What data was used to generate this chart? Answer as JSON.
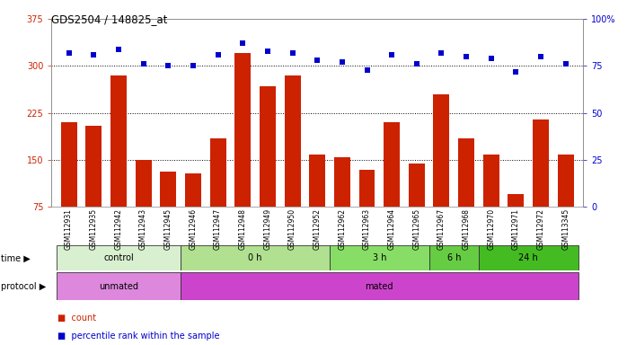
{
  "title": "GDS2504 / 148825_at",
  "samples": [
    "GSM112931",
    "GSM112935",
    "GSM112942",
    "GSM112943",
    "GSM112945",
    "GSM112946",
    "GSM112947",
    "GSM112948",
    "GSM112949",
    "GSM112950",
    "GSM112952",
    "GSM112962",
    "GSM112963",
    "GSM112964",
    "GSM112965",
    "GSM112967",
    "GSM112968",
    "GSM112970",
    "GSM112971",
    "GSM112972",
    "GSM113345"
  ],
  "counts": [
    210,
    205,
    285,
    150,
    132,
    128,
    185,
    320,
    268,
    285,
    158,
    155,
    135,
    210,
    145,
    255,
    185,
    158,
    95,
    215,
    158
  ],
  "percentiles": [
    82,
    81,
    84,
    76,
    75,
    75,
    81,
    87,
    83,
    82,
    78,
    77,
    73,
    81,
    76,
    82,
    80,
    79,
    72,
    80,
    76
  ],
  "ylim_left": [
    75,
    375
  ],
  "ylim_right": [
    0,
    100
  ],
  "yticks_left": [
    75,
    150,
    225,
    300,
    375
  ],
  "yticks_right": [
    0,
    25,
    50,
    75,
    100
  ],
  "bar_color": "#cc2200",
  "dot_color": "#0000cc",
  "hgrid_vals": [
    150,
    225,
    300
  ],
  "time_groups": [
    {
      "label": "control",
      "start": 0,
      "end": 5,
      "color": "#d8f0d0"
    },
    {
      "label": "0 h",
      "start": 5,
      "end": 11,
      "color": "#b0e090"
    },
    {
      "label": "3 h",
      "start": 11,
      "end": 15,
      "color": "#88dd66"
    },
    {
      "label": "6 h",
      "start": 15,
      "end": 17,
      "color": "#66cc44"
    },
    {
      "label": "24 h",
      "start": 17,
      "end": 21,
      "color": "#44bb22"
    }
  ],
  "protocol_groups": [
    {
      "label": "unmated",
      "start": 0,
      "end": 5,
      "color": "#dd88dd"
    },
    {
      "label": "mated",
      "start": 5,
      "end": 21,
      "color": "#cc44cc"
    }
  ],
  "fig_width": 6.98,
  "fig_height": 3.84,
  "dpi": 100
}
